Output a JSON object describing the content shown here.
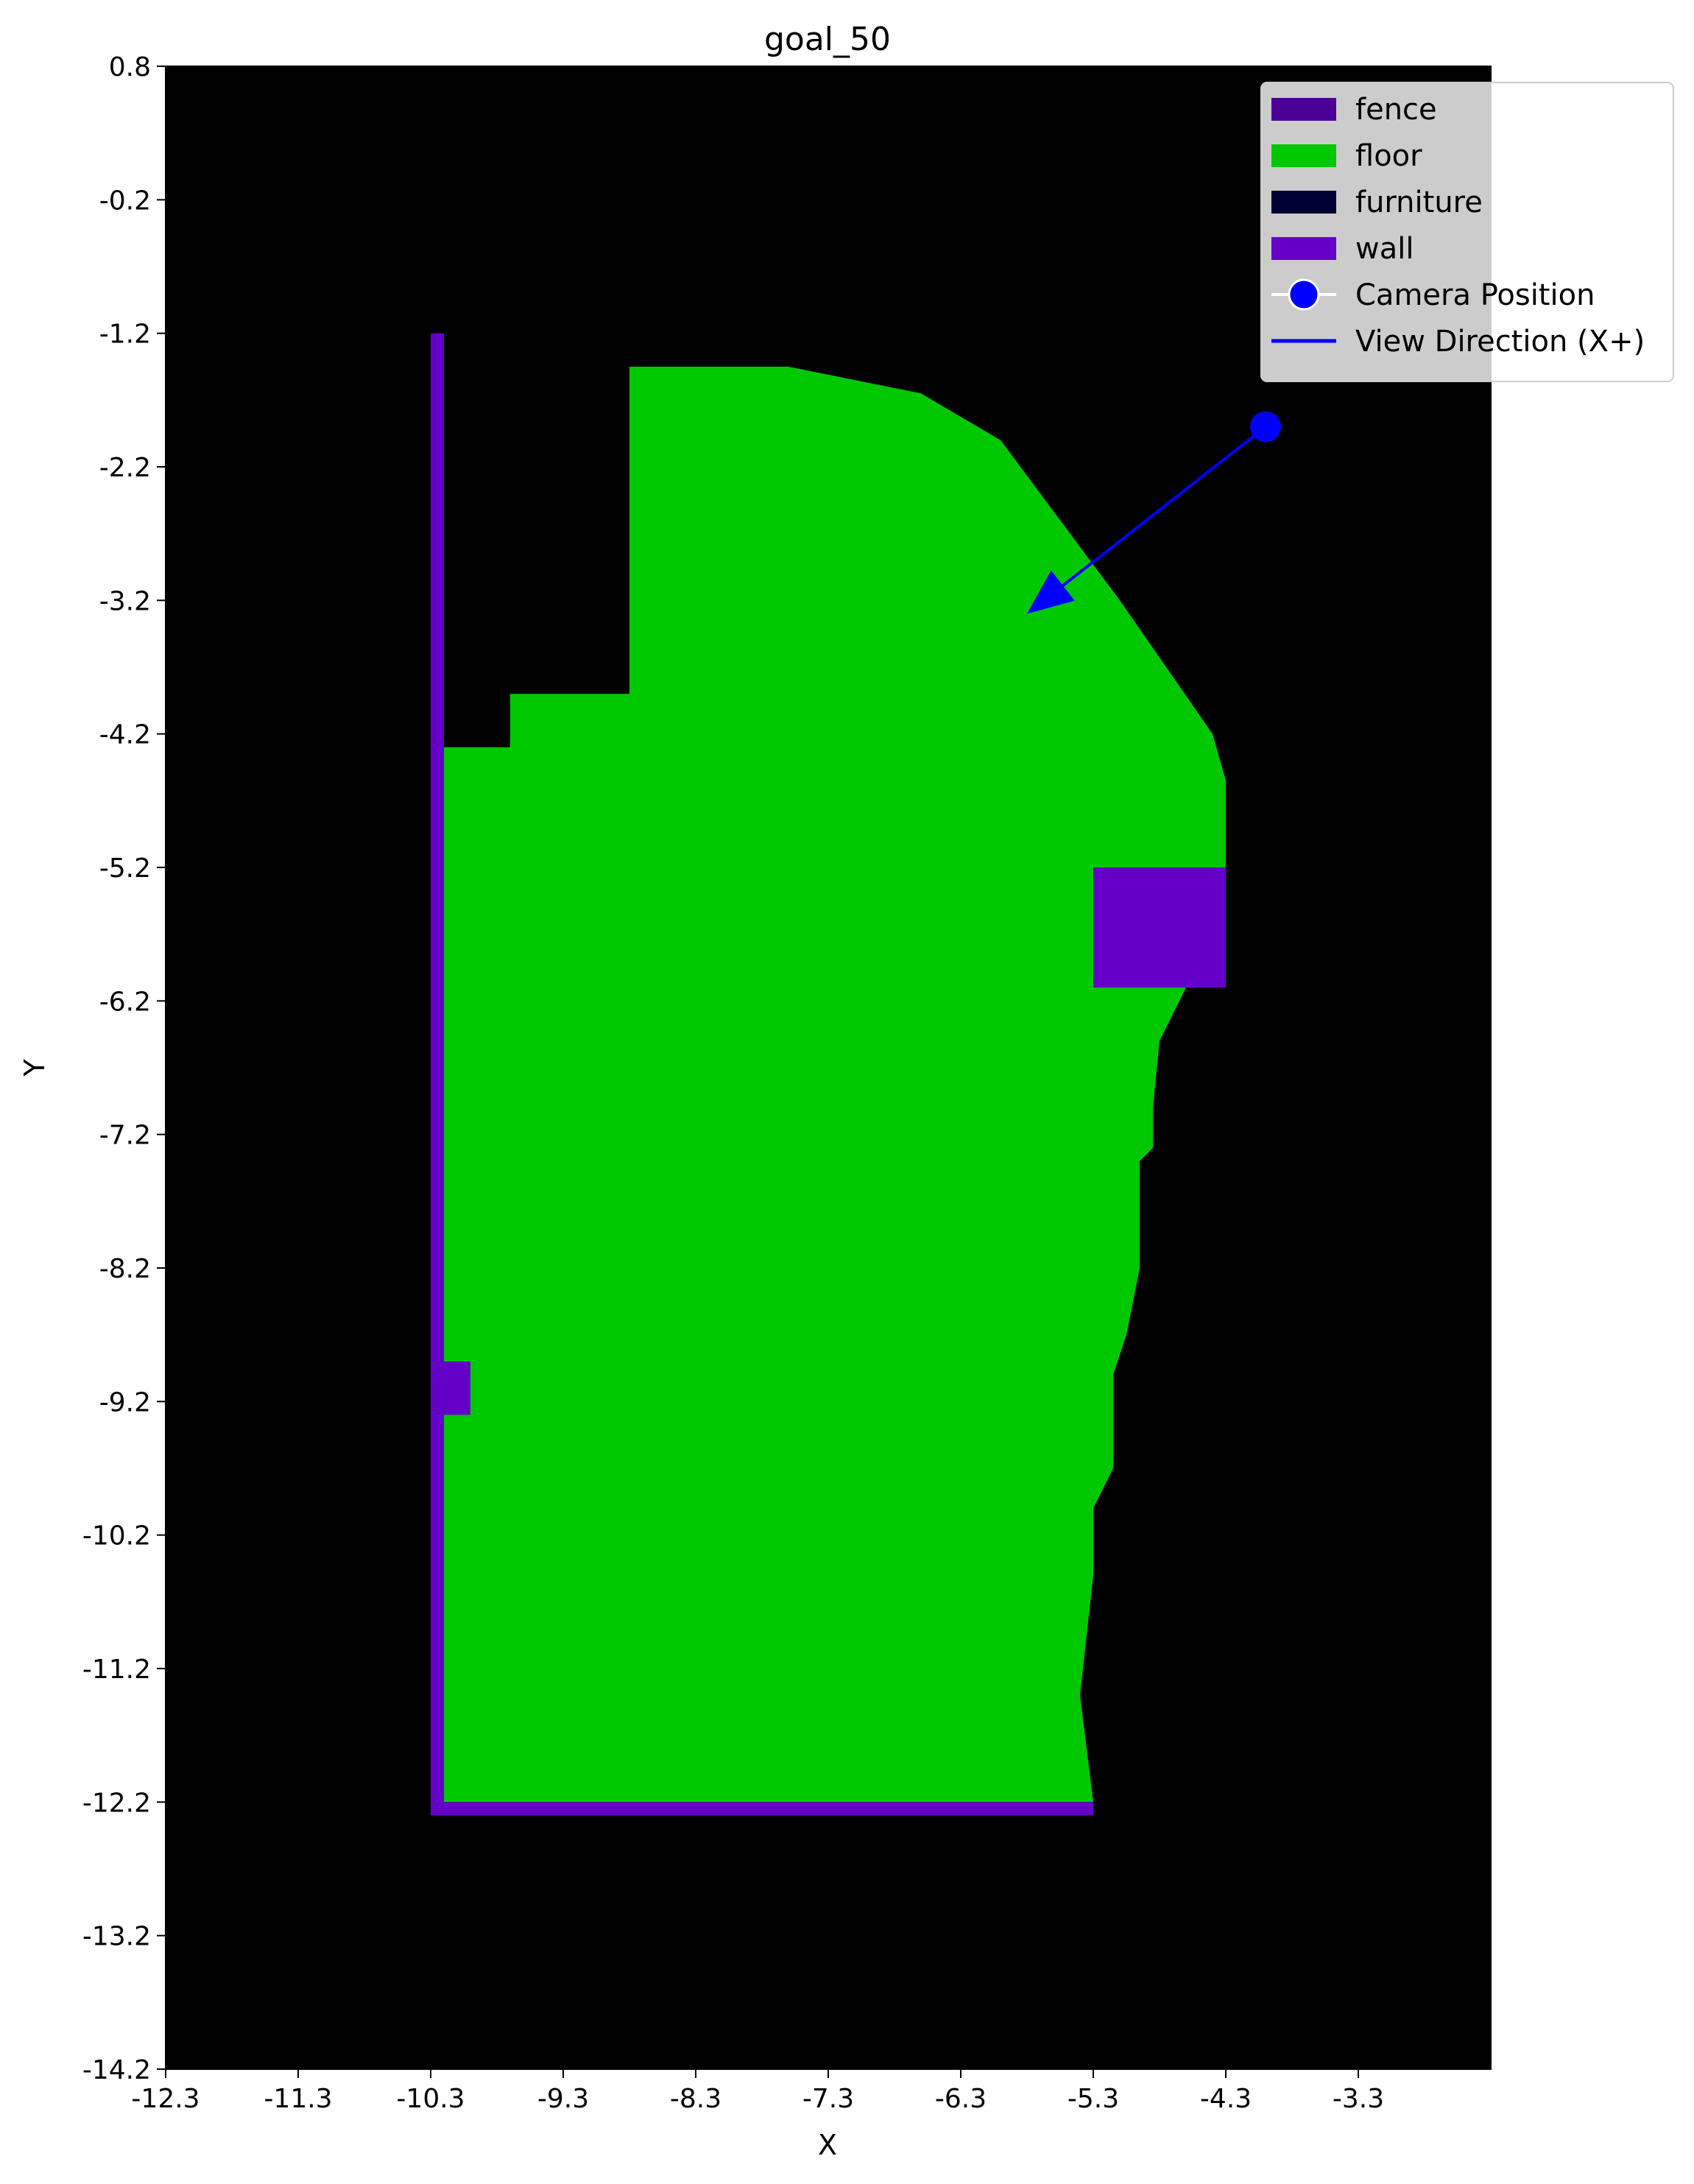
{
  "chart_data": {
    "type": "heatmap",
    "title": "goal_50",
    "xlabel": "X",
    "ylabel": "Y",
    "xlim": [
      -12.3,
      -2.3
    ],
    "ylim": [
      -14.2,
      0.8
    ],
    "x_ticks": [
      "-12.3",
      "-11.3",
      "-10.3",
      "-9.3",
      "-8.3",
      "-7.3",
      "-6.3",
      "-5.3",
      "-4.3",
      "-3.3"
    ],
    "x_tick_values": [
      -12.3,
      -11.3,
      -10.3,
      -9.3,
      -8.3,
      -7.3,
      -6.3,
      -5.3,
      -4.3,
      -3.3
    ],
    "y_ticks": [
      "0.8",
      "-0.2",
      "-1.2",
      "-2.2",
      "-3.2",
      "-4.2",
      "-5.2",
      "-6.2",
      "-7.2",
      "-8.2",
      "-9.2",
      "-10.2",
      "-11.2",
      "-12.2",
      "-13.2",
      "-14.2"
    ],
    "y_tick_values": [
      0.8,
      -0.2,
      -1.2,
      -2.2,
      -3.2,
      -4.2,
      -5.2,
      -6.2,
      -7.2,
      -8.2,
      -9.2,
      -10.2,
      -11.2,
      -12.2,
      -13.2,
      -14.2
    ],
    "background": "#000000",
    "legend": {
      "position": "upper right",
      "entries": [
        {
          "label": "fence",
          "color": "#4b0096",
          "kind": "patch"
        },
        {
          "label": "floor",
          "color": "#00c800",
          "kind": "patch"
        },
        {
          "label": "furniture",
          "color": "#000032",
          "kind": "patch"
        },
        {
          "label": "wall",
          "color": "#6400c8",
          "kind": "patch"
        },
        {
          "label": "Camera Position",
          "color": "#0000ff",
          "kind": "marker"
        },
        {
          "label": "View Direction (X+)",
          "color": "#0000ff",
          "kind": "line"
        }
      ]
    },
    "camera_position": {
      "x": -4.0,
      "y": -1.9
    },
    "view_direction_end": {
      "x": -5.8,
      "y": -3.3
    },
    "regions": {
      "floor_outline": [
        [
          -8.8,
          -1.45
        ],
        [
          -7.6,
          -1.45
        ],
        [
          -7.1,
          -1.55
        ],
        [
          -6.6,
          -1.65
        ],
        [
          -6.0,
          -2.0
        ],
        [
          -5.7,
          -2.4
        ],
        [
          -5.1,
          -3.2
        ],
        [
          -4.4,
          -4.2
        ],
        [
          -4.3,
          -4.55
        ],
        [
          -4.3,
          -5.2
        ],
        [
          -4.9,
          -5.8
        ],
        [
          -4.6,
          -6.1
        ],
        [
          -4.8,
          -6.5
        ],
        [
          -4.85,
          -7.0
        ],
        [
          -4.85,
          -7.3
        ],
        [
          -4.95,
          -7.4
        ],
        [
          -4.95,
          -8.2
        ],
        [
          -5.05,
          -8.7
        ],
        [
          -5.15,
          -9.0
        ],
        [
          -5.15,
          -9.7
        ],
        [
          -5.3,
          -10.0
        ],
        [
          -5.3,
          -10.5
        ],
        [
          -5.4,
          -11.4
        ],
        [
          -5.3,
          -12.2
        ],
        [
          -10.3,
          -12.2
        ],
        [
          -10.3,
          -4.3
        ],
        [
          -9.7,
          -4.3
        ],
        [
          -9.7,
          -3.9
        ],
        [
          -8.8,
          -3.9
        ]
      ],
      "fence_segments": [
        {
          "x": [
            -10.3,
            -10.2
          ],
          "y": [
            -12.2,
            -1.2
          ]
        },
        {
          "x": [
            -10.3,
            -5.3
          ],
          "y": [
            -12.3,
            -12.2
          ]
        }
      ],
      "wall_blocks": [
        {
          "x": [
            -5.3,
            -4.3
          ],
          "y": [
            -6.1,
            -5.2
          ]
        },
        {
          "x": [
            -10.2,
            -10.0
          ],
          "y": [
            -9.3,
            -8.9
          ]
        }
      ]
    }
  }
}
